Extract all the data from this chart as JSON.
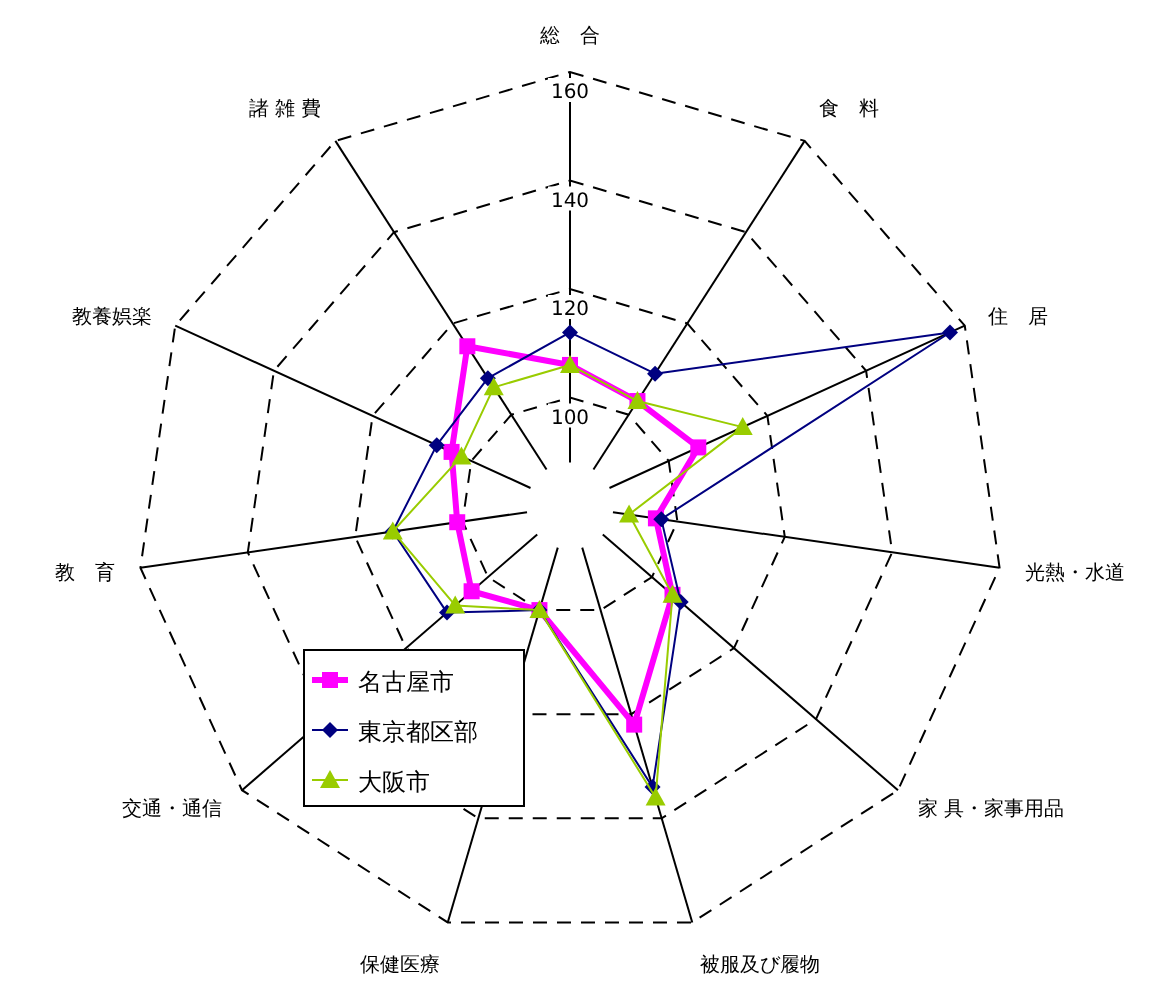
{
  "chart_data": {
    "type": "radar",
    "categories": [
      "総　合",
      "食　料",
      "住　居",
      "光熱・水道",
      "家 具・家事用品",
      "被服及び履物",
      "保健医療",
      "交通・通信",
      "教　育",
      "教養娯楽",
      "諸 雑 費"
    ],
    "ylim": [
      80,
      160
    ],
    "yticks": [
      100,
      120,
      140,
      160
    ],
    "grid": true,
    "legend": "bottom left",
    "series": [
      {
        "name": "名古屋市",
        "color": "#ff00ff",
        "marker": "square",
        "values": [
          106,
          103,
          106,
          96,
          105,
          122,
          100,
          104,
          101,
          104,
          115
        ]
      },
      {
        "name": "東京都区部",
        "color": "#000080",
        "marker": "diamond",
        "values": [
          112,
          109,
          157,
          97,
          107,
          134,
          100,
          110,
          113,
          107,
          108
        ]
      },
      {
        "name": "大阪市",
        "color": "#99cc00",
        "marker": "triangle",
        "values": [
          106,
          103,
          115,
          91,
          105,
          136,
          100,
          108,
          113,
          102,
          106
        ]
      }
    ]
  }
}
